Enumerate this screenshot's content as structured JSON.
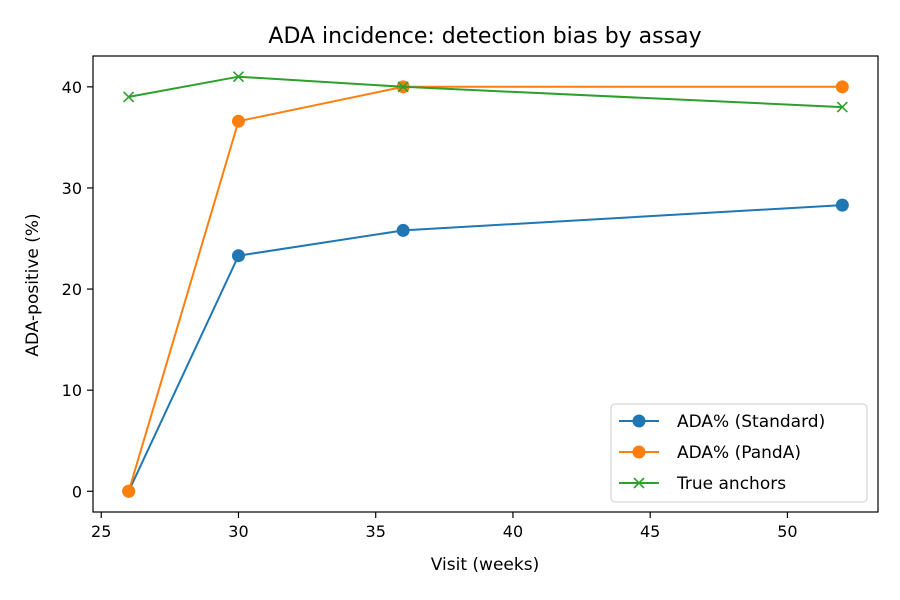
{
  "chart_data": {
    "type": "line",
    "title": "ADA incidence: detection bias by assay",
    "xlabel": "Visit (weeks)",
    "ylabel": "ADA-positive (%)",
    "xlim": [
      24.7,
      53.3
    ],
    "ylim": [
      -2.05,
      43.05
    ],
    "xticks": [
      25,
      30,
      35,
      40,
      45,
      50
    ],
    "yticks": [
      0,
      10,
      20,
      30,
      40
    ],
    "grid": false,
    "legend_position": "lower-right",
    "series": [
      {
        "name": "ADA% (Standard)",
        "color": "#1f77b4",
        "marker": "circle",
        "x": [
          26,
          30,
          36,
          52
        ],
        "y": [
          0,
          23.3,
          25.8,
          28.3
        ]
      },
      {
        "name": "ADA% (PandA)",
        "color": "#ff7f0e",
        "marker": "circle",
        "x": [
          26,
          30,
          36,
          52
        ],
        "y": [
          0,
          36.6,
          40.0,
          40.0
        ]
      },
      {
        "name": "True anchors",
        "color": "#2ca02c",
        "marker": "x",
        "x": [
          26,
          30,
          36,
          52
        ],
        "y": [
          39,
          41,
          40,
          38
        ]
      }
    ]
  }
}
